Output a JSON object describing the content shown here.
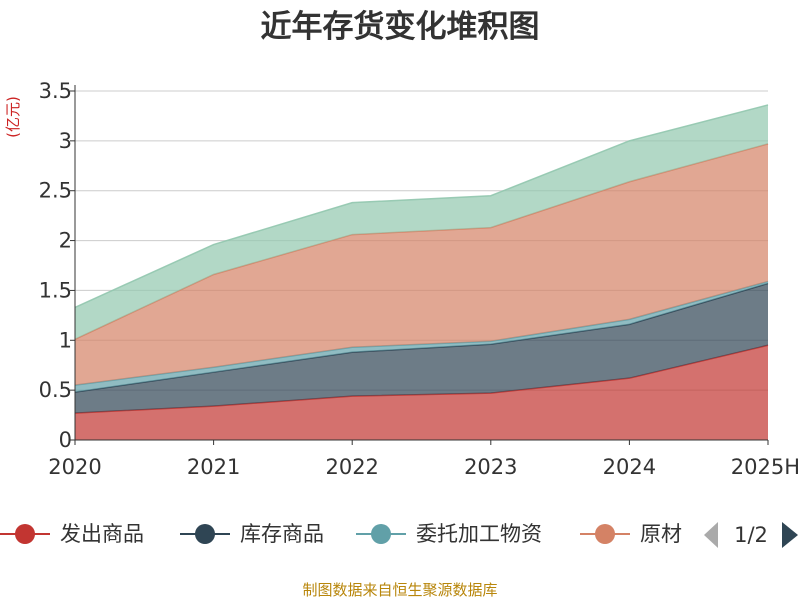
{
  "chart_data": {
    "type": "area",
    "stacked": true,
    "title": "近年存货变化堆积图",
    "ylabel": "(亿元)",
    "ylim": [
      0,
      3.5
    ],
    "yticks": [
      "0",
      "0.5",
      "1",
      "1.5",
      "2",
      "2.5",
      "3",
      "3.5"
    ],
    "categories": [
      "2020",
      "2021",
      "2022",
      "2023",
      "2024",
      "2025H"
    ],
    "grid": true,
    "legend_position": "bottom",
    "series": [
      {
        "name": "发出商品",
        "color": "#c23531",
        "values": [
          0.27,
          0.34,
          0.44,
          0.47,
          0.62,
          0.95
        ]
      },
      {
        "name": "库存商品",
        "color": "#2f4554",
        "values": [
          0.21,
          0.34,
          0.44,
          0.49,
          0.54,
          0.62
        ]
      },
      {
        "name": "委托加工物资",
        "color": "#61a0a8",
        "values": [
          0.07,
          0.05,
          0.05,
          0.03,
          0.05,
          0.02
        ]
      },
      {
        "name": "原材料",
        "color": "#d48265",
        "values": [
          0.46,
          0.93,
          1.13,
          1.14,
          1.38,
          1.38
        ]
      },
      {
        "name": "",
        "color": "#91c7ae",
        "values": [
          0.32,
          0.3,
          0.32,
          0.32,
          0.41,
          0.39
        ]
      }
    ]
  },
  "legend": {
    "items": [
      {
        "label": "发出商品",
        "color": "#c23531"
      },
      {
        "label": "库存商品",
        "color": "#2f4554"
      },
      {
        "label": "委托加工物资",
        "color": "#61a0a8"
      },
      {
        "label": "原材",
        "color": "#d48265"
      }
    ],
    "page": "1/2",
    "prev_icon": "triangle-left-icon",
    "next_icon": "triangle-right-icon"
  },
  "footer": {
    "source": "制图数据来自恒生聚源数据库"
  }
}
